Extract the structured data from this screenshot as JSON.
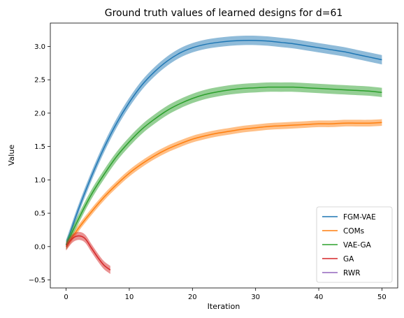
{
  "chart_data": {
    "type": "line",
    "title": "Ground truth values of learned designs for d=61",
    "xlabel": "Iteration",
    "ylabel": "Value",
    "xlim": [
      -2.5,
      52.5
    ],
    "ylim": [
      -0.62,
      3.35
    ],
    "xticks": [
      0,
      10,
      20,
      30,
      40,
      50
    ],
    "yticks": [
      -0.5,
      0.0,
      0.5,
      1.0,
      1.5,
      2.0,
      2.5,
      3.0
    ],
    "xtick_labels": [
      "0",
      "10",
      "20",
      "30",
      "40",
      "50"
    ],
    "ytick_labels": [
      "−0.5",
      "0.0",
      "0.5",
      "1.0",
      "1.5",
      "2.0",
      "2.5",
      "3.0"
    ],
    "legend_position": "lower-right",
    "grid": false,
    "series": [
      {
        "name": "FGM-VAE",
        "color": "#1f77b4",
        "band": 0.07,
        "x": [
          0,
          2,
          4,
          6,
          8,
          10,
          12,
          14,
          16,
          18,
          20,
          22,
          24,
          26,
          28,
          30,
          32,
          34,
          36,
          38,
          40,
          42,
          44,
          46,
          48,
          50
        ],
        "y": [
          0.03,
          0.57,
          1.05,
          1.48,
          1.85,
          2.16,
          2.42,
          2.62,
          2.78,
          2.9,
          2.98,
          3.03,
          3.06,
          3.08,
          3.09,
          3.09,
          3.08,
          3.06,
          3.04,
          3.01,
          2.98,
          2.95,
          2.92,
          2.88,
          2.84,
          2.8
        ]
      },
      {
        "name": "COMs",
        "color": "#ff7f0e",
        "band": 0.05,
        "x": [
          0,
          2,
          4,
          6,
          8,
          10,
          12,
          14,
          16,
          18,
          20,
          22,
          24,
          26,
          28,
          30,
          32,
          34,
          36,
          38,
          40,
          42,
          44,
          46,
          48,
          50
        ],
        "y": [
          0.0,
          0.28,
          0.52,
          0.74,
          0.93,
          1.1,
          1.24,
          1.36,
          1.46,
          1.54,
          1.61,
          1.66,
          1.7,
          1.73,
          1.76,
          1.78,
          1.8,
          1.81,
          1.82,
          1.83,
          1.84,
          1.84,
          1.85,
          1.85,
          1.85,
          1.86
        ]
      },
      {
        "name": "VAE-GA",
        "color": "#2ca02c",
        "band": 0.07,
        "x": [
          0,
          2,
          4,
          6,
          8,
          10,
          12,
          14,
          16,
          18,
          20,
          22,
          24,
          26,
          28,
          30,
          32,
          34,
          36,
          38,
          40,
          42,
          44,
          46,
          48,
          50
        ],
        "y": [
          0.02,
          0.42,
          0.78,
          1.08,
          1.35,
          1.57,
          1.76,
          1.91,
          2.04,
          2.14,
          2.22,
          2.28,
          2.32,
          2.35,
          2.37,
          2.38,
          2.39,
          2.39,
          2.39,
          2.38,
          2.37,
          2.36,
          2.35,
          2.34,
          2.33,
          2.31
        ]
      },
      {
        "name": "GA",
        "color": "#d62728",
        "band": 0.06,
        "x": [
          0,
          1,
          2,
          3,
          4,
          5,
          6,
          7
        ],
        "y": [
          0.0,
          0.12,
          0.16,
          0.12,
          -0.02,
          -0.16,
          -0.28,
          -0.35
        ]
      },
      {
        "name": "RWR",
        "color": "#9467bd",
        "band": 0.0,
        "x": [],
        "y": []
      }
    ]
  }
}
